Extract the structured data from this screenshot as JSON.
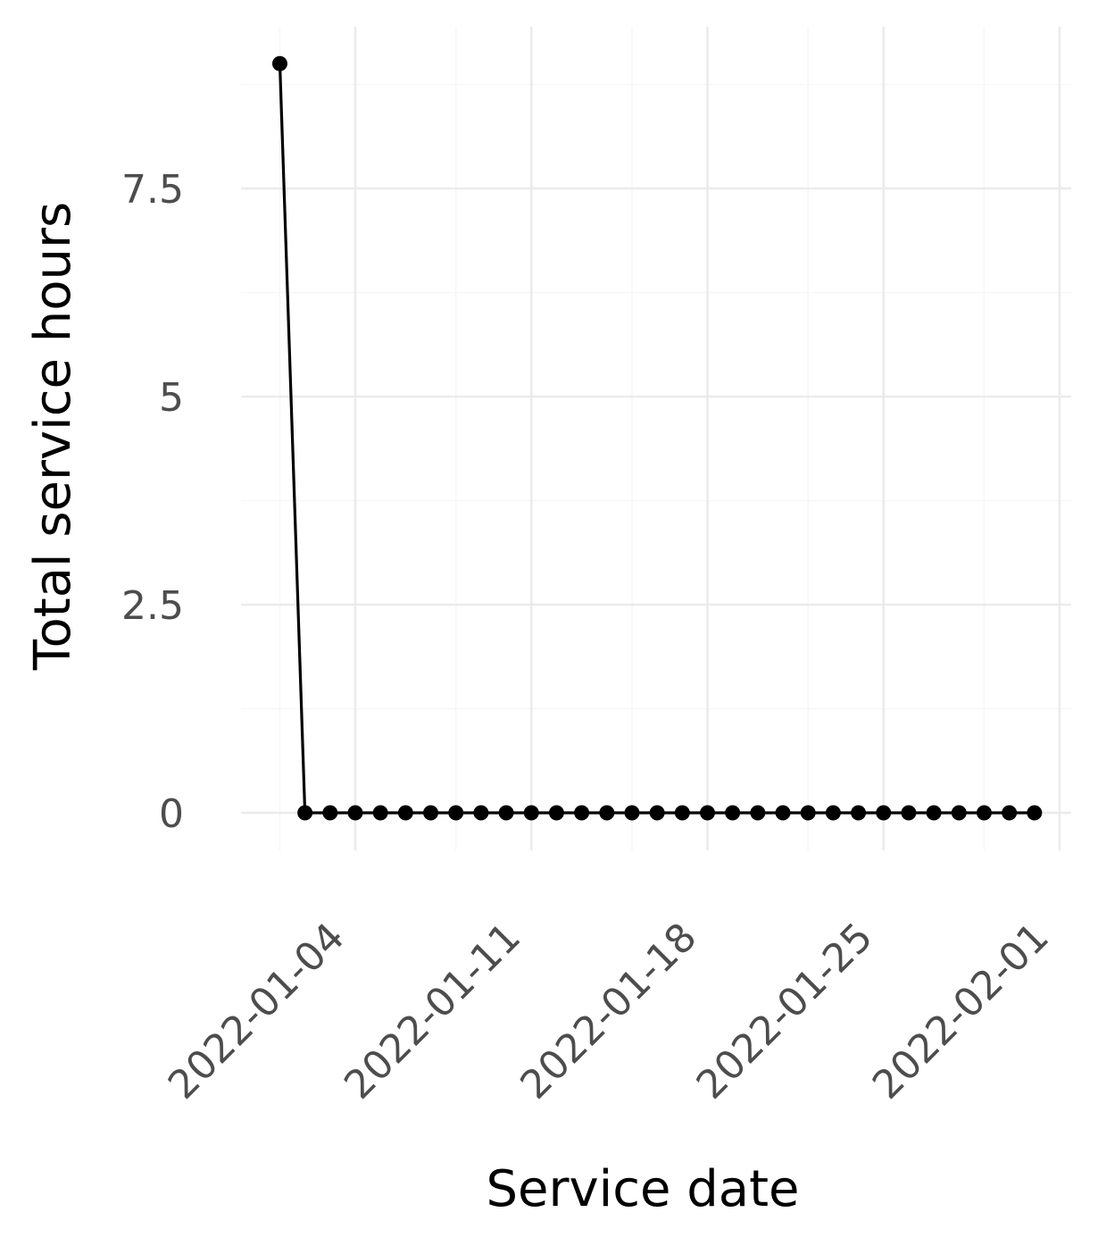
{
  "chart_data": {
    "type": "line",
    "title": "",
    "xlabel": "Service date",
    "ylabel": "Total service hours",
    "x_type": "date",
    "xlim": [
      "2022-01-01",
      "2022-02-01"
    ],
    "ylim": [
      -0.4,
      9.4
    ],
    "x_ticks": [
      "2022-01-04",
      "2022-01-11",
      "2022-01-18",
      "2022-01-25",
      "2022-02-01"
    ],
    "x_minor_ticks": [
      "2022-01-01",
      "2022-01-08",
      "2022-01-15",
      "2022-01-22",
      "2022-01-29"
    ],
    "y_ticks": [
      0,
      2.5,
      5,
      7.5
    ],
    "y_tick_labels": [
      "0",
      "2.5",
      "5",
      "7.5"
    ],
    "y_minor_ticks": [
      1.25,
      3.75,
      6.25,
      8.75
    ],
    "grid": true,
    "legend": "none",
    "series": [
      {
        "color": "#000000",
        "x": [
          "2022-01-01",
          "2022-01-02",
          "2022-01-03",
          "2022-01-04",
          "2022-01-05",
          "2022-01-06",
          "2022-01-07",
          "2022-01-08",
          "2022-01-09",
          "2022-01-10",
          "2022-01-11",
          "2022-01-12",
          "2022-01-13",
          "2022-01-14",
          "2022-01-15",
          "2022-01-16",
          "2022-01-17",
          "2022-01-18",
          "2022-01-19",
          "2022-01-20",
          "2022-01-21",
          "2022-01-22",
          "2022-01-23",
          "2022-01-24",
          "2022-01-25",
          "2022-01-26",
          "2022-01-27",
          "2022-01-28",
          "2022-01-29",
          "2022-01-30",
          "2022-01-31"
        ],
        "y": [
          9,
          0,
          0,
          0,
          0,
          0,
          0,
          0,
          0,
          0,
          0,
          0,
          0,
          0,
          0,
          0,
          0,
          0,
          0,
          0,
          0,
          0,
          0,
          0,
          0,
          0,
          0,
          0,
          0,
          0,
          0
        ]
      }
    ]
  }
}
